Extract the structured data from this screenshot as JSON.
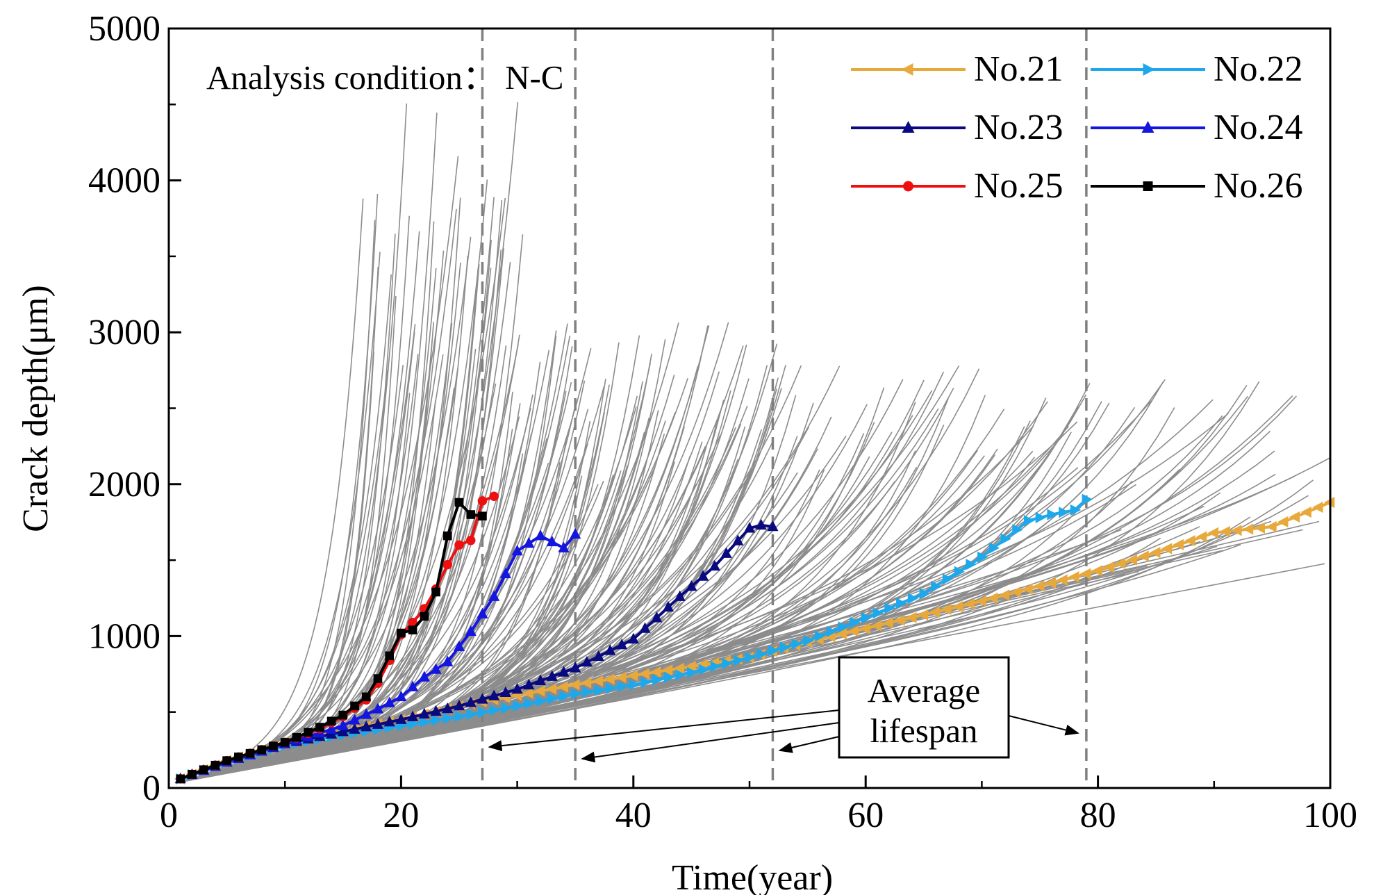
{
  "chart_data": {
    "type": "line",
    "xlabel": "Time(year)",
    "ylabel": "Crack depth(μm)",
    "xlim": [
      0,
      100
    ],
    "ylim": [
      0,
      5000
    ],
    "xticks": [
      0,
      20,
      40,
      60,
      80,
      100
    ],
    "yticks": [
      0,
      1000,
      2000,
      3000,
      4000,
      5000
    ],
    "annotation_condition": "Analysis condition：  N-C",
    "annotation_lifespan": [
      "Average",
      "lifespan"
    ],
    "average_lifespan_years": [
      27,
      35,
      52,
      79
    ],
    "legend_position": "top-right",
    "background_curves": {
      "color": "#8c8c8c",
      "description_groups": [
        {
          "failure_years": [
            18,
            19,
            20,
            21,
            22,
            23,
            24,
            25,
            26,
            27,
            28,
            29,
            30
          ],
          "peak_depth_range": [
            2500,
            4600
          ]
        },
        {
          "failure_years": [
            30,
            31,
            32,
            33,
            34,
            35,
            36,
            37,
            38,
            39,
            40,
            41,
            42,
            43,
            44,
            45,
            46,
            47,
            48,
            49,
            50,
            51,
            52
          ],
          "peak_depth_range": [
            2000,
            3100
          ]
        },
        {
          "failure_years": [
            53,
            55,
            57,
            59,
            61,
            63,
            65,
            67,
            69,
            71,
            73,
            75,
            77,
            79
          ],
          "peak_depth_range": [
            2000,
            2800
          ]
        },
        {
          "failure_years": [
            80,
            82,
            84,
            86,
            88,
            90,
            92,
            94,
            96,
            98,
            100
          ],
          "peak_depth_range": [
            1400,
            2700
          ]
        }
      ]
    },
    "series": [
      {
        "name": "No.21",
        "color": "#e8a93c",
        "marker": "triangle-left",
        "x": [
          1,
          5,
          10,
          15,
          20,
          25,
          30,
          35,
          40,
          45,
          50,
          55,
          60,
          65,
          70,
          75,
          80,
          85,
          90,
          95,
          100
        ],
        "y": [
          60,
          180,
          300,
          380,
          450,
          540,
          610,
          680,
          740,
          800,
          860,
          960,
          1050,
          1140,
          1230,
          1330,
          1430,
          1550,
          1680,
          1720,
          1880
        ]
      },
      {
        "name": "No.22",
        "color": "#1ea8ec",
        "marker": "triangle-right",
        "x": [
          1,
          5,
          10,
          15,
          20,
          25,
          30,
          35,
          40,
          45,
          50,
          55,
          60,
          65,
          70,
          74,
          76,
          78,
          79
        ],
        "y": [
          60,
          170,
          280,
          350,
          410,
          470,
          540,
          620,
          680,
          760,
          860,
          970,
          1120,
          1280,
          1520,
          1760,
          1800,
          1830,
          1900
        ]
      },
      {
        "name": "No.23",
        "color": "#0a0a80",
        "marker": "triangle-up",
        "x": [
          1,
          5,
          10,
          15,
          20,
          25,
          30,
          35,
          40,
          44,
          47,
          50,
          51,
          52
        ],
        "y": [
          60,
          170,
          290,
          370,
          450,
          540,
          650,
          790,
          980,
          1260,
          1460,
          1710,
          1730,
          1720
        ]
      },
      {
        "name": "No.24",
        "color": "#1515e0",
        "marker": "triangle-up",
        "x": [
          1,
          5,
          10,
          15,
          18,
          20,
          22,
          24,
          26,
          28,
          30,
          32,
          33,
          34,
          35
        ],
        "y": [
          60,
          170,
          290,
          410,
          520,
          600,
          730,
          830,
          1030,
          1260,
          1560,
          1660,
          1620,
          1580,
          1670
        ]
      },
      {
        "name": "No.25",
        "color": "#ee1010",
        "marker": "circle",
        "x": [
          1,
          5,
          10,
          13,
          15,
          17,
          18,
          19,
          20,
          21,
          22,
          23,
          24,
          25,
          26,
          27,
          28
        ],
        "y": [
          60,
          180,
          300,
          390,
          470,
          580,
          690,
          840,
          1010,
          1090,
          1180,
          1310,
          1470,
          1600,
          1630,
          1890,
          1920
        ]
      },
      {
        "name": "No.26",
        "color": "#000000",
        "marker": "square",
        "x": [
          1,
          5,
          10,
          13,
          15,
          17,
          18,
          19,
          20,
          21,
          22,
          23,
          24,
          25,
          26,
          27
        ],
        "y": [
          60,
          180,
          300,
          400,
          480,
          600,
          720,
          870,
          1020,
          1040,
          1130,
          1290,
          1660,
          1880,
          1800,
          1790
        ]
      }
    ]
  }
}
